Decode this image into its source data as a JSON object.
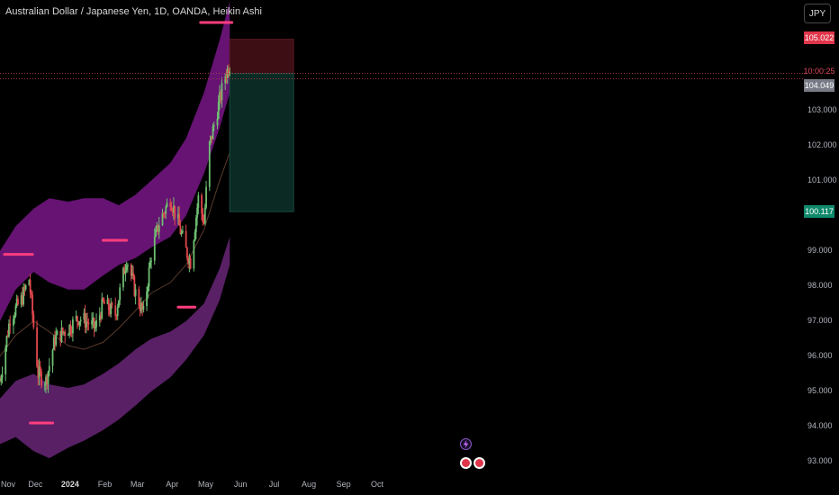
{
  "header": {
    "title": "Australian Dollar / Japanese Yen, 1D, OANDA, Heikin Ashi",
    "currency_button": "JPY"
  },
  "colors": {
    "background": "#000000",
    "band_outer": "#7b2d8e",
    "band_inner": "#8e1aa0",
    "candle_up": "#6fbf73",
    "candle_down": "#e0474c",
    "pink_line": "#ff3d7f",
    "stop_zone": "#3d0f14",
    "target_zone": "#0b2a24"
  },
  "price_tags": {
    "stop": "105.022",
    "countdown": "10:00:25",
    "current": "104.049",
    "target": "100.117"
  },
  "chart_data": {
    "type": "candlestick",
    "title": "Australian Dollar / Japanese Yen, 1D, OANDA, Heikin Ashi",
    "xlabel": "",
    "ylabel": "",
    "ylim": [
      92.8,
      106.1
    ],
    "y_ticks": [
      "103.000",
      "102.000",
      "101.000",
      "99.000",
      "98.000",
      "97.000",
      "96.000",
      "95.000",
      "94.000",
      "93.000"
    ],
    "x_ticks": [
      "Nov",
      "Dec",
      "2024",
      "Feb",
      "Mar",
      "Apr",
      "May",
      "Jun",
      "Jul",
      "Aug",
      "Sep",
      "Oct"
    ],
    "price_path": {
      "dates": [
        "2023-11-01",
        "2023-11-10",
        "2023-11-20",
        "2023-11-27",
        "2023-12-05",
        "2023-12-12",
        "2023-12-20",
        "2024-01-01",
        "2024-01-10",
        "2024-01-17",
        "2024-01-25",
        "2024-02-01",
        "2024-02-12",
        "2024-02-22",
        "2024-03-01",
        "2024-03-08",
        "2024-03-15",
        "2024-03-22",
        "2024-04-01",
        "2024-04-08",
        "2024-04-15",
        "2024-04-19",
        "2024-04-26",
        "2024-05-01",
        "2024-05-06",
        "2024-05-13",
        "2024-05-20",
        "2024-05-24"
      ],
      "close": [
        95.3,
        97.1,
        97.6,
        98.2,
        95.5,
        95.3,
        96.5,
        96.8,
        97.1,
        97.0,
        96.8,
        97.5,
        97.2,
        98.8,
        97.8,
        97.2,
        98.9,
        99.8,
        100.5,
        99.8,
        99.0,
        98.7,
        100.5,
        99.8,
        102.0,
        103.0,
        104.0,
        104.3
      ]
    },
    "bands": {
      "dates": [
        "2023-11-01",
        "2023-11-15",
        "2023-12-01",
        "2023-12-15",
        "2024-01-01",
        "2024-01-15",
        "2024-02-01",
        "2024-02-15",
        "2024-03-01",
        "2024-03-15",
        "2024-04-01",
        "2024-04-15",
        "2024-05-01",
        "2024-05-15",
        "2024-05-24"
      ],
      "outer_upper": [
        99.0,
        99.7,
        100.2,
        100.5,
        100.4,
        100.5,
        100.5,
        100.3,
        100.6,
        101.0,
        101.5,
        102.2,
        103.5,
        105.0,
        106.1
      ],
      "inner_upper": [
        97.0,
        97.9,
        98.4,
        98.1,
        97.9,
        97.9,
        98.3,
        98.6,
        98.8,
        99.1,
        99.4,
        100.0,
        101.2,
        102.5,
        103.5
      ],
      "midline": [
        96.0,
        96.6,
        97.0,
        96.7,
        96.3,
        96.2,
        96.4,
        96.8,
        97.3,
        97.8,
        98.1,
        98.6,
        99.6,
        101.0,
        101.8
      ],
      "inner_lower": [
        94.8,
        95.3,
        95.5,
        95.2,
        95.1,
        95.2,
        95.5,
        95.8,
        96.2,
        96.5,
        96.7,
        97.0,
        97.5,
        98.5,
        99.4
      ],
      "outer_lower": [
        93.5,
        93.7,
        93.3,
        93.1,
        93.4,
        93.6,
        93.9,
        94.2,
        94.6,
        95.0,
        95.4,
        95.9,
        96.6,
        97.6,
        98.6
      ]
    },
    "levels": [
      {
        "start": "2023-11-05",
        "end": "2023-11-30",
        "y": 98.9
      },
      {
        "start": "2023-11-28",
        "end": "2023-12-18",
        "y": 94.1
      },
      {
        "start": "2024-02-01",
        "end": "2024-02-22",
        "y": 99.3
      },
      {
        "start": "2024-04-08",
        "end": "2024-04-23",
        "y": 97.4
      },
      {
        "start": "2024-04-28",
        "end": "2024-05-26",
        "y": 105.5
      }
    ],
    "position": {
      "start": "2024-05-24",
      "end": "2024-07-20",
      "stop": 105.022,
      "entry": 104.049,
      "target": 100.117
    },
    "current_price": 104.049,
    "countdown": "10:00:25"
  }
}
